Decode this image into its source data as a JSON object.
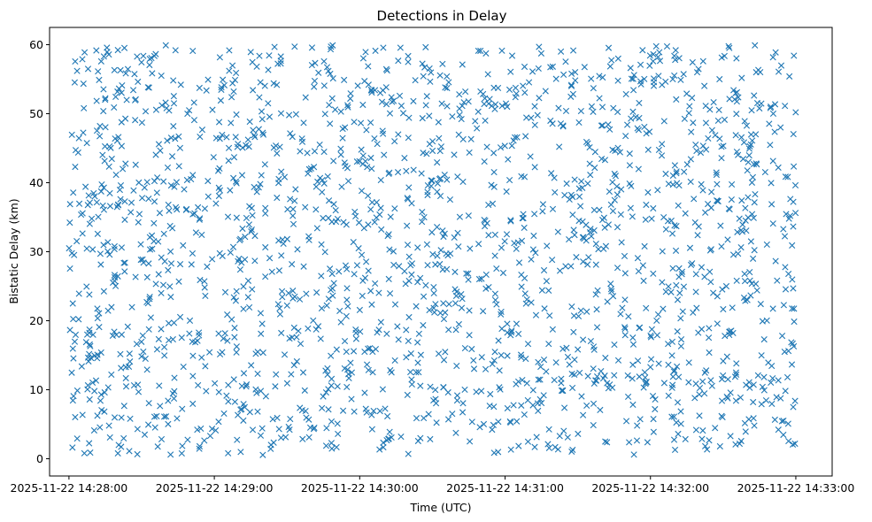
{
  "chart_data": {
    "type": "scatter",
    "title": "Detections in Delay",
    "xlabel": "Time (UTC)",
    "ylabel": "Bistatic Delay (km)",
    "marker": "x",
    "color": "#1f77b4",
    "grid": false,
    "legend": "none",
    "xlim": [
      "2025-11-22 14:27:52",
      "2025-11-22 14:33:15"
    ],
    "ylim": [
      -2.5,
      62.5
    ],
    "x_ticks": [
      "2025-11-22 14:28:00",
      "2025-11-22 14:29:00",
      "2025-11-22 14:30:00",
      "2025-11-22 14:31:00",
      "2025-11-22 14:32:00",
      "2025-11-22 14:33:00"
    ],
    "y_ticks": [
      0,
      10,
      20,
      30,
      40,
      50,
      60
    ],
    "point_count": 2000,
    "x_range": [
      "2025-11-22 14:28:00",
      "2025-11-22 14:33:00"
    ],
    "y_range": [
      0.5,
      60
    ]
  }
}
